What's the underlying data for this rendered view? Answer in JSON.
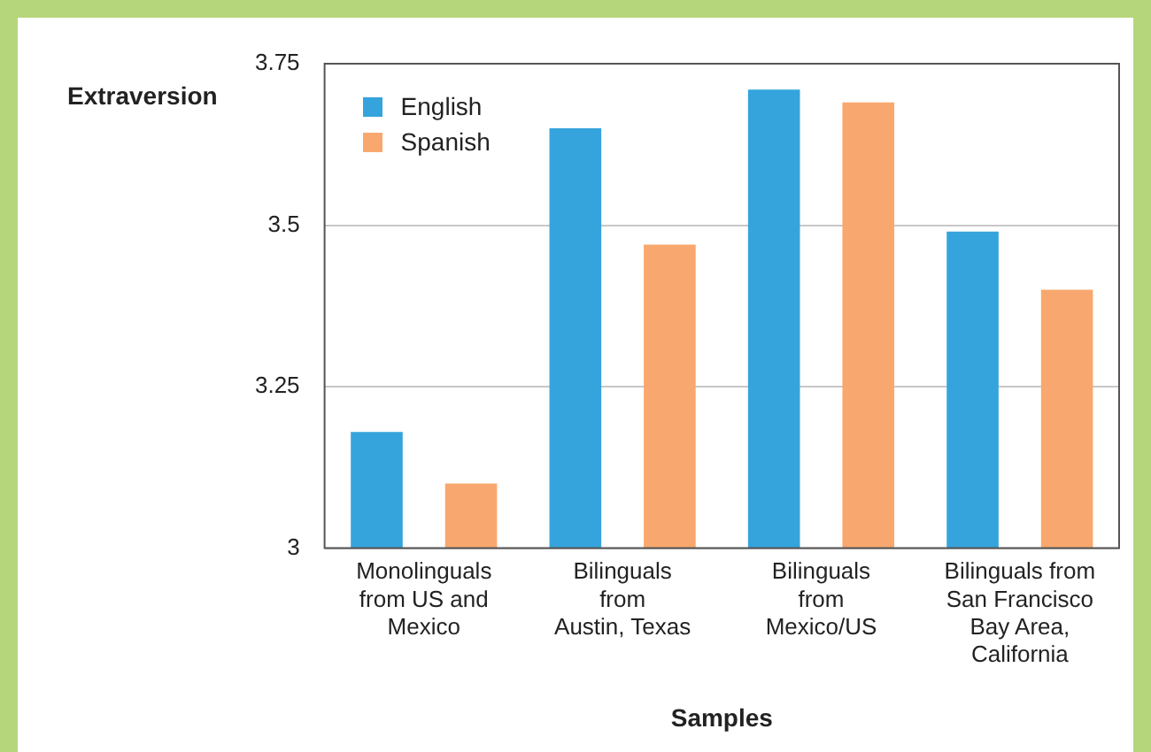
{
  "chart_data": {
    "type": "bar",
    "ylabel": "Extraversion",
    "xlabel": "Samples",
    "categories": [
      "Monolinguals\nfrom US and\nMexico",
      "Bilinguals\nfrom\nAustin, Texas",
      "Bilinguals\nfrom\nMexico/US",
      "Bilinguals from\nSan Francisco\nBay Area,\nCalifornia"
    ],
    "series": [
      {
        "name": "English",
        "color": "#35a4dc",
        "values": [
          3.18,
          3.65,
          3.71,
          3.49
        ]
      },
      {
        "name": "Spanish",
        "color": "#f8a86e",
        "values": [
          3.1,
          3.47,
          3.69,
          3.4
        ]
      }
    ],
    "ylim": [
      3,
      3.75
    ],
    "yticks": [
      3,
      3.25,
      3.5,
      3.75
    ],
    "grid": "y",
    "legend": "top left"
  }
}
